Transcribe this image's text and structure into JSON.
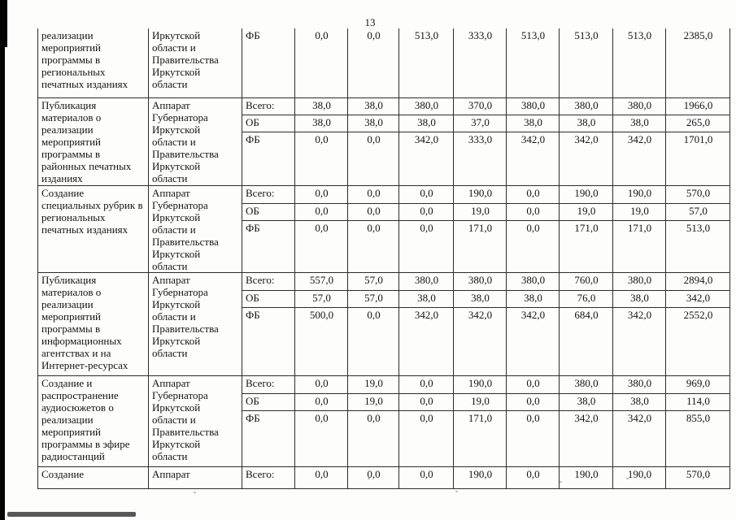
{
  "page": {
    "number": "13"
  },
  "colors": {
    "border": "#2c2c2c",
    "text": "#141414",
    "edge_artifact": "#050505"
  },
  "table": {
    "blocks": [
      {
        "activity": "реализации\nмероприятий\nпрограммы в\nрегиональных\nпечатных изданиях",
        "agency": "Иркутской\nобласти и\nПравительства\nИркутской\nобласти",
        "rows": [
          {
            "source": "ФБ",
            "values": [
              "0,0",
              "0,0",
              "513,0",
              "333,0",
              "513,0",
              "513,0",
              "513,0",
              "2385,0"
            ]
          }
        ]
      },
      {
        "activity": "Публикация\nматериалов о\nреализации\nмероприятий\nпрограммы в\nрайонных печатных\nизданиях",
        "agency": "Аппарат\nГубернатора\nИркутской\nобласти и\nПравительства\nИркутской\nобласти",
        "rows": [
          {
            "source": "Всего:",
            "values": [
              "38,0",
              "38,0",
              "380,0",
              "370,0",
              "380,0",
              "380,0",
              "380,0",
              "1966,0"
            ]
          },
          {
            "source": "ОБ",
            "values": [
              "38,0",
              "38,0",
              "38,0",
              "37,0",
              "38,0",
              "38,0",
              "38,0",
              "265,0"
            ]
          },
          {
            "source": "ФБ",
            "values": [
              "0,0",
              "0,0",
              "342,0",
              "333,0",
              "342,0",
              "342,0",
              "342,0",
              "1701,0"
            ]
          }
        ]
      },
      {
        "activity": "Создание\nспециальных рубрик в\nрегиональных\nпечатных изданиях",
        "agency": "Аппарат\nГубернатора\nИркутской\nобласти и\nПравительства\nИркутской\nобласти",
        "rows": [
          {
            "source": "Всего:",
            "values": [
              "0,0",
              "0,0",
              "0,0",
              "190,0",
              "0,0",
              "190,0",
              "190,0",
              "570,0"
            ]
          },
          {
            "source": "ОБ",
            "values": [
              "0,0",
              "0,0",
              "0,0",
              "19,0",
              "0,0",
              "19,0",
              "19,0",
              "57,0"
            ]
          },
          {
            "source": "ФБ",
            "values": [
              "0,0",
              "0,0",
              "0,0",
              "171,0",
              "0,0",
              "171,0",
              "171,0",
              "513,0"
            ]
          }
        ]
      },
      {
        "activity": "Публикация\nматериалов о\nреализации\nмероприятий\nпрограммы в\nинформационных\nагентствах и на\nИнтернет-ресурсах",
        "agency": "Аппарат\nГубернатора\nИркутской\nобласти и\nПравительства\nИркутской\nобласти",
        "rows": [
          {
            "source": "Всего:",
            "values": [
              "557,0",
              "57,0",
              "380,0",
              "380,0",
              "380,0",
              "760,0",
              "380,0",
              "2894,0"
            ]
          },
          {
            "source": "ОБ",
            "values": [
              "57,0",
              "57,0",
              "38,0",
              "38,0",
              "38,0",
              "76,0",
              "38,0",
              "342,0"
            ]
          },
          {
            "source": "ФБ",
            "values": [
              "500,0",
              "0,0",
              "342,0",
              "342,0",
              "342,0",
              "684,0",
              "342,0",
              "2552,0"
            ]
          }
        ]
      },
      {
        "activity": "Создание и\nраспространение\nаудиосюжетов о\nреализации\nмероприятий\nпрограммы в эфире\nрадиостанций",
        "agency": "Аппарат\nГубернатора\nИркутской\nобласти и\nПравительства\nИркутской\nобласти",
        "rows": [
          {
            "source": "Всего:",
            "values": [
              "0,0",
              "19,0",
              "0,0",
              "190,0",
              "0,0",
              "380,0",
              "380,0",
              "969,0"
            ]
          },
          {
            "source": "ОБ",
            "values": [
              "0,0",
              "19,0",
              "0,0",
              "19,0",
              "0,0",
              "38,0",
              "38,0",
              "114,0"
            ]
          },
          {
            "source": "ФБ",
            "values": [
              "0,0",
              "0,0",
              "0,0",
              "171,0",
              "0,0",
              "342,0",
              "342,0",
              "855,0"
            ]
          }
        ]
      },
      {
        "activity": "Создание",
        "agency": "Аппарат",
        "rows": [
          {
            "source": "Всего:",
            "values": [
              "0,0",
              "0,0",
              "0,0",
              "190,0",
              "0,0",
              "190,0",
              "190,0",
              "570,0"
            ]
          }
        ]
      }
    ]
  }
}
